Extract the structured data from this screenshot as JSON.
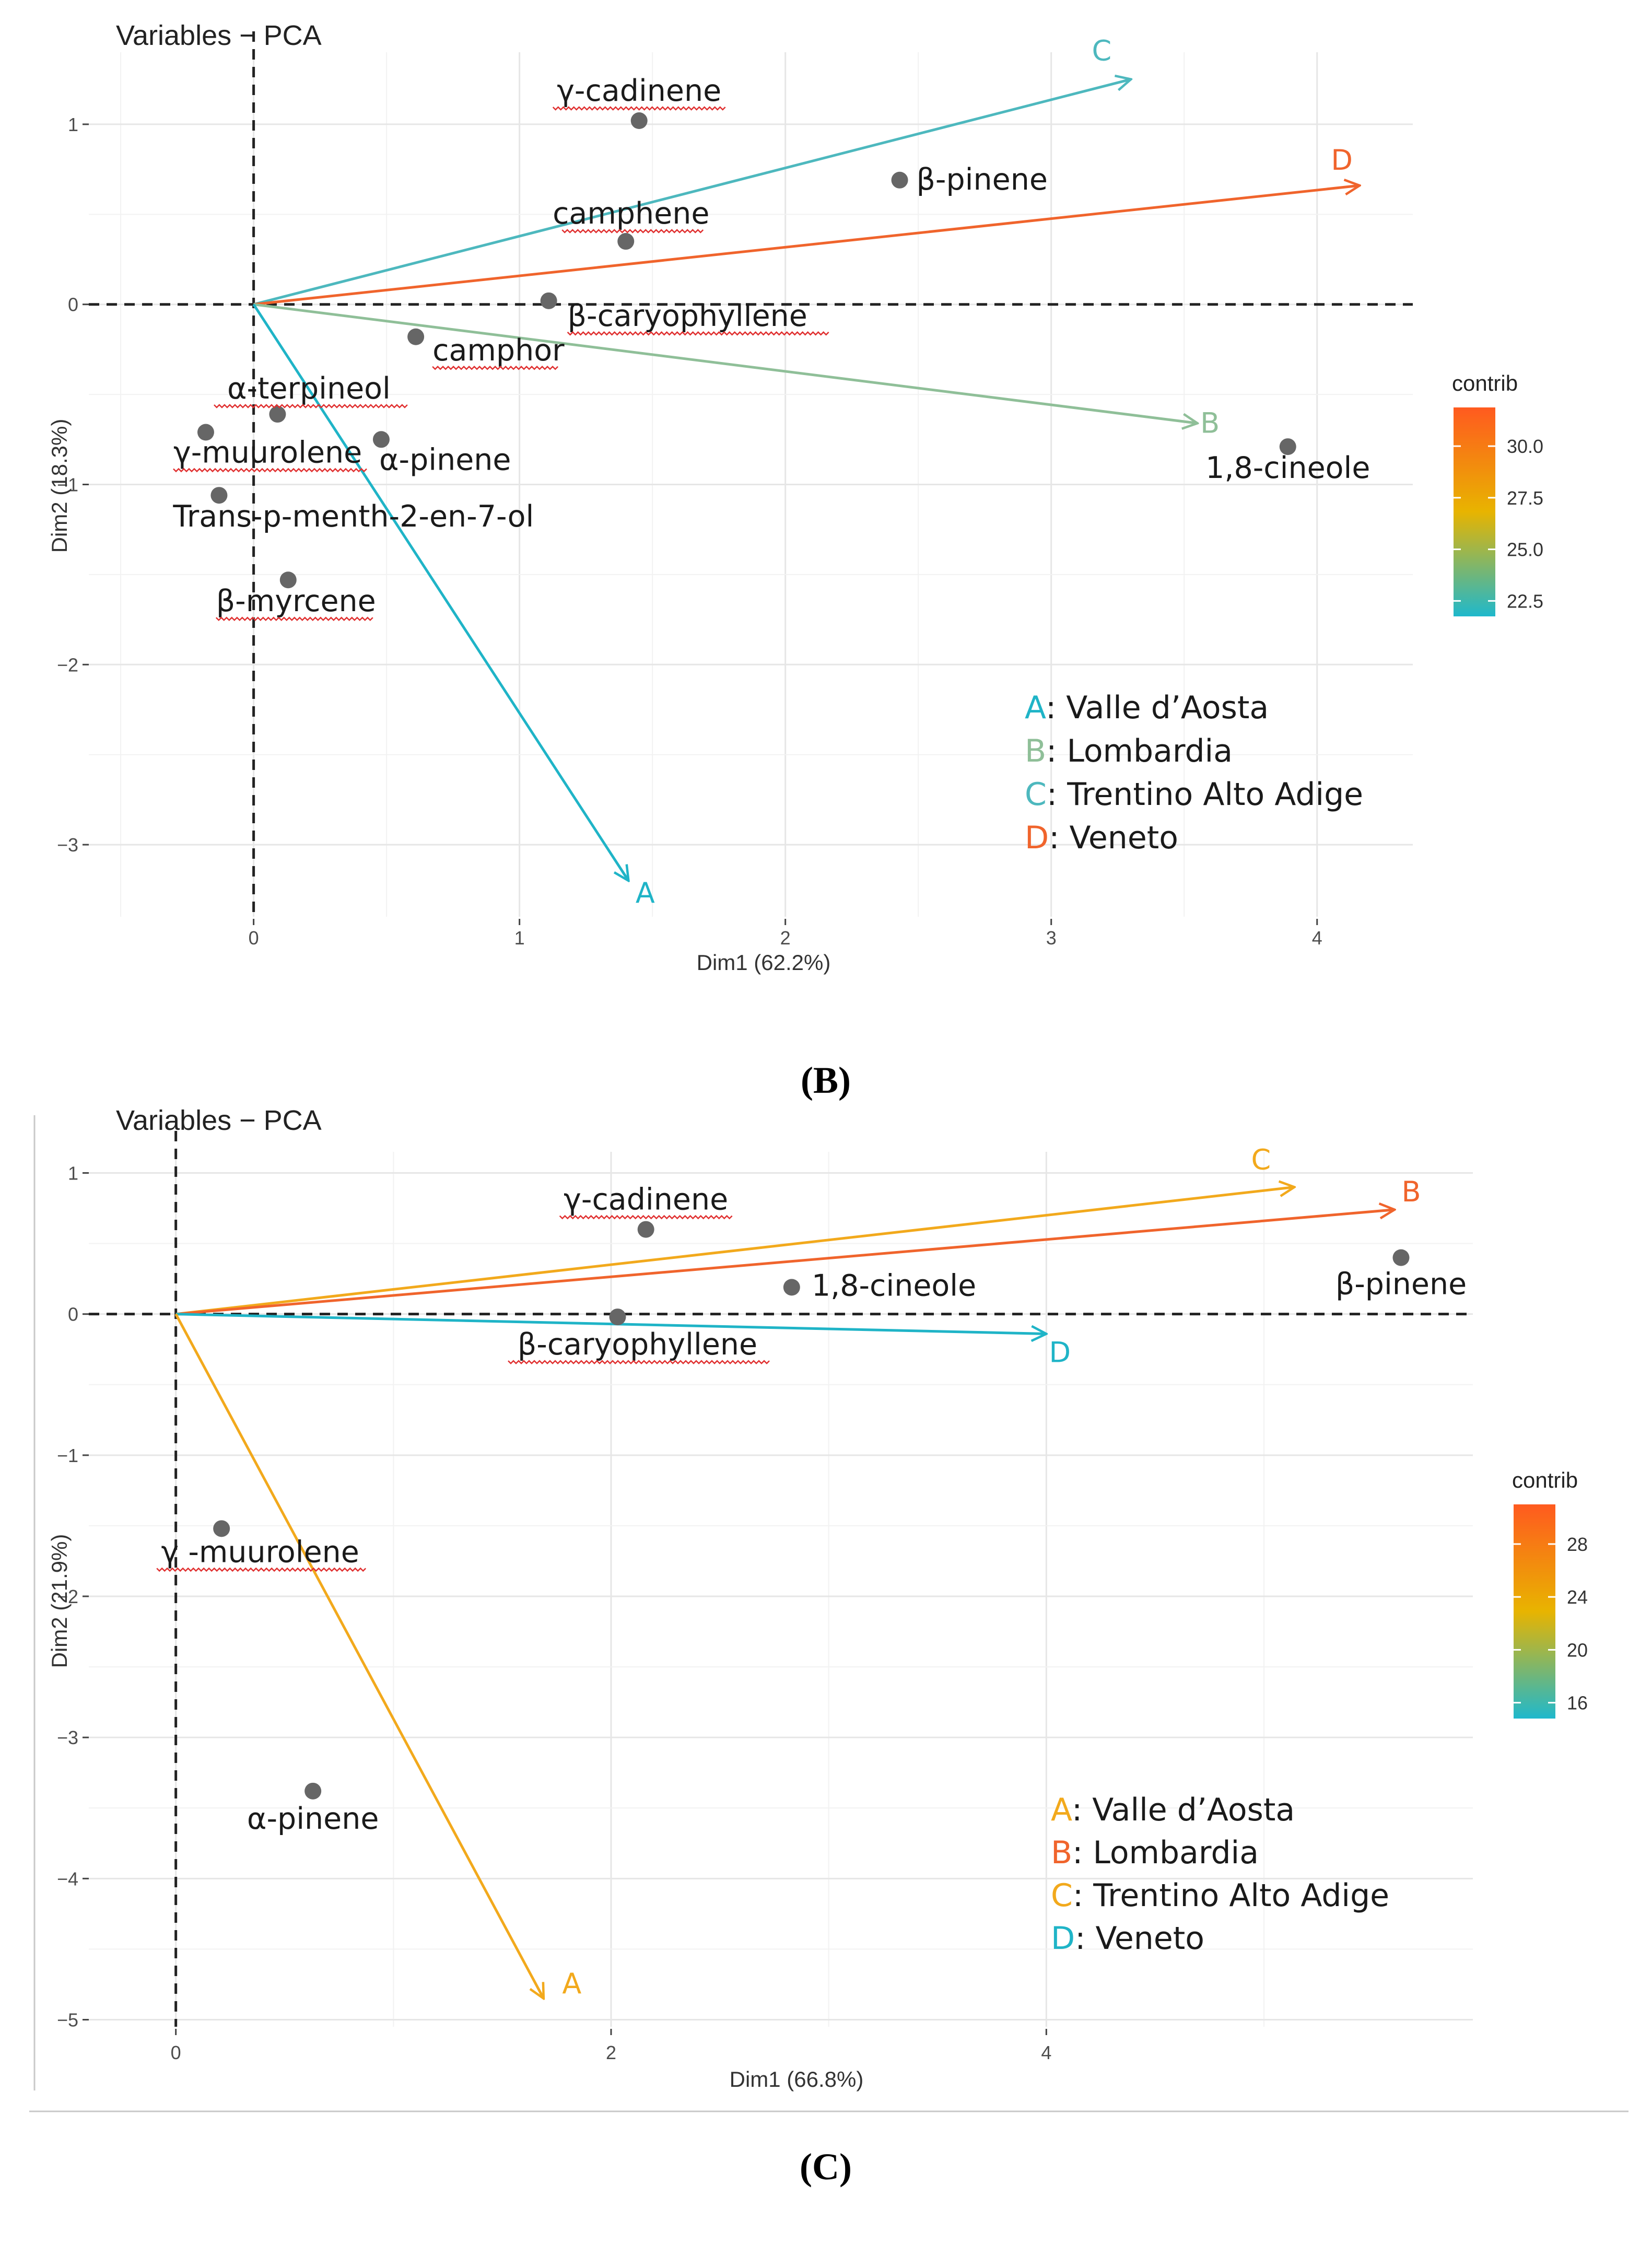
{
  "captions": {
    "B": "(B)",
    "C": "(C)"
  },
  "chart_data": [
    {
      "type": "scatter",
      "subtype": "pca-biplot",
      "title": "Variables − PCA",
      "xlabel": "Dim1 (62.2%)",
      "ylabel": "Dim2 (18.3%)",
      "xlim": [
        -0.62,
        4.36
      ],
      "ylim": [
        -3.4,
        1.4
      ],
      "xticks": [
        0,
        1,
        2,
        3,
        4
      ],
      "yticks": [
        1,
        0,
        -1,
        -2,
        -3
      ],
      "points": [
        {
          "label": "γ-cadinene",
          "x": 1.45,
          "y": 1.02
        },
        {
          "label": "β-pinene",
          "x": 2.43,
          "y": 0.69
        },
        {
          "label": "camphene",
          "x": 1.4,
          "y": 0.35
        },
        {
          "label": "β-caryophyllene",
          "x": 1.11,
          "y": 0.02
        },
        {
          "label": "camphor",
          "x": 0.61,
          "y": -0.18
        },
        {
          "label": "α-terpineol",
          "x": 0.09,
          "y": -0.61
        },
        {
          "label": "γ-muurolene",
          "x": -0.18,
          "y": -0.71
        },
        {
          "label": "α-pinene",
          "x": 0.48,
          "y": -0.75
        },
        {
          "label": "Trans-p-menth-2-en-7-ol",
          "x": -0.13,
          "y": -1.06
        },
        {
          "label": "β-myrcene",
          "x": 0.13,
          "y": -1.53
        },
        {
          "label": "1,8-cineole",
          "x": 3.89,
          "y": -0.79
        }
      ],
      "arrows": [
        {
          "label": "C",
          "x": 3.3,
          "y": 1.25,
          "contrib": 22.5,
          "color": "#4db8be"
        },
        {
          "label": "D",
          "x": 4.16,
          "y": 0.66,
          "contrib": 31.5,
          "color": "#f0642c"
        },
        {
          "label": "B",
          "x": 3.55,
          "y": -0.66,
          "contrib": 24.5,
          "color": "#8fbf98"
        },
        {
          "label": "A",
          "x": 1.41,
          "y": -3.2,
          "contrib": 22.0,
          "color": "#1fb4c7"
        }
      ],
      "legend": {
        "title": "contrib",
        "ticks": [
          "30.0",
          "27.5",
          "25.0",
          "22.5"
        ],
        "gradient": [
          "#ff5a1f",
          "#e8b400",
          "#1fb8cc"
        ]
      },
      "annotation": [
        {
          "key": "A",
          "text": ": Valle d’Aosta",
          "color": "#1fb4c7"
        },
        {
          "key": "B",
          "text": ": Lombardia",
          "color": "#8fbf98"
        },
        {
          "key": "C",
          "text": ": Trentino Alto Adige",
          "color": "#4db8be"
        },
        {
          "key": "D",
          "text": ": Veneto",
          "color": "#f0642c"
        }
      ]
    },
    {
      "type": "scatter",
      "subtype": "pca-biplot",
      "title": "Variables − PCA",
      "xlabel": "Dim1 (66.8%)",
      "ylabel": "Dim2 (21.9%)",
      "xlim": [
        -0.4,
        5.96
      ],
      "ylim": [
        -5.05,
        1.15
      ],
      "xticks": [
        0,
        2,
        4
      ],
      "yticks": [
        1,
        0,
        -1,
        -2,
        -3,
        -4,
        -5
      ],
      "points": [
        {
          "label": "γ-cadinene",
          "x": 2.16,
          "y": 0.6
        },
        {
          "label": "1,8-cineole",
          "x": 2.83,
          "y": 0.19
        },
        {
          "label": "β-pinene",
          "x": 5.63,
          "y": 0.4
        },
        {
          "label": "β-caryophyllene",
          "x": 2.03,
          "y": -0.02
        },
        {
          "label": "γ -muurolene",
          "x": 0.21,
          "y": -1.52
        },
        {
          "label": "α-pinene",
          "x": 0.63,
          "y": -3.38
        }
      ],
      "arrows": [
        {
          "label": "C",
          "x": 5.14,
          "y": 0.9,
          "contrib": 24.5,
          "color": "#f2a91c"
        },
        {
          "label": "B",
          "x": 5.6,
          "y": 0.74,
          "contrib": 29.0,
          "color": "#f0642c"
        },
        {
          "label": "D",
          "x": 4.0,
          "y": -0.14,
          "contrib": 16.0,
          "color": "#1fb4c7"
        },
        {
          "label": "A",
          "x": 1.69,
          "y": -4.85,
          "contrib": 24.0,
          "color": "#f2a91c"
        }
      ],
      "legend": {
        "title": "contrib",
        "ticks": [
          "28",
          "24",
          "20",
          "16"
        ],
        "gradient": [
          "#ff5a1f",
          "#e8b400",
          "#1fb8cc"
        ]
      },
      "annotation": [
        {
          "key": "A",
          "text": ": Valle d’Aosta",
          "color": "#f2a91c"
        },
        {
          "key": "B",
          "text": ": Lombardia",
          "color": "#f0642c"
        },
        {
          "key": "C",
          "text": ": Trentino Alto Adige",
          "color": "#f2a91c"
        },
        {
          "key": "D",
          "text": ": Veneto",
          "color": "#1fb4c7"
        }
      ]
    }
  ]
}
